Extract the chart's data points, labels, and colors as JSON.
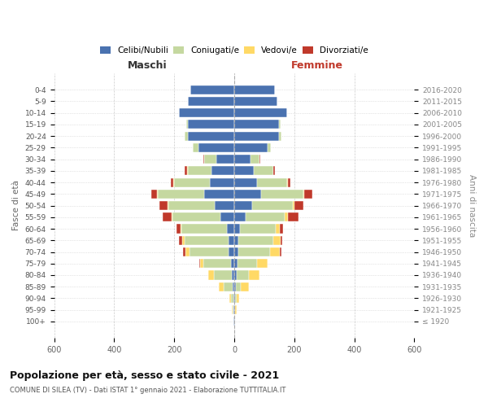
{
  "age_groups": [
    "100+",
    "95-99",
    "90-94",
    "85-89",
    "80-84",
    "75-79",
    "70-74",
    "65-69",
    "60-64",
    "55-59",
    "50-54",
    "45-49",
    "40-44",
    "35-39",
    "30-34",
    "25-29",
    "20-24",
    "15-19",
    "10-14",
    "5-9",
    "0-4"
  ],
  "birth_years": [
    "≤ 1920",
    "1921-1925",
    "1926-1930",
    "1931-1935",
    "1936-1940",
    "1941-1945",
    "1946-1950",
    "1951-1955",
    "1956-1960",
    "1961-1965",
    "1966-1970",
    "1971-1975",
    "1976-1980",
    "1981-1985",
    "1986-1990",
    "1991-1995",
    "1996-2000",
    "2001-2005",
    "2006-2010",
    "2011-2015",
    "2016-2020"
  ],
  "male": {
    "celibi": [
      2,
      2,
      3,
      5,
      8,
      12,
      18,
      20,
      25,
      45,
      65,
      100,
      80,
      75,
      60,
      120,
      155,
      155,
      185,
      155,
      145
    ],
    "coniugati": [
      0,
      3,
      8,
      30,
      60,
      90,
      130,
      145,
      150,
      160,
      155,
      155,
      120,
      80,
      40,
      18,
      10,
      5,
      0,
      0,
      0
    ],
    "vedovi": [
      0,
      2,
      5,
      15,
      18,
      12,
      14,
      8,
      5,
      4,
      3,
      2,
      2,
      1,
      0,
      0,
      0,
      0,
      0,
      0,
      0
    ],
    "divorziati": [
      0,
      0,
      0,
      0,
      0,
      2,
      8,
      10,
      12,
      28,
      25,
      20,
      10,
      8,
      2,
      0,
      0,
      0,
      0,
      0,
      0
    ]
  },
  "female": {
    "nubili": [
      2,
      2,
      3,
      5,
      8,
      10,
      15,
      15,
      18,
      38,
      60,
      90,
      75,
      65,
      55,
      110,
      150,
      150,
      175,
      145,
      135
    ],
    "coniugate": [
      0,
      2,
      5,
      18,
      40,
      65,
      105,
      115,
      120,
      130,
      135,
      140,
      100,
      65,
      30,
      12,
      8,
      4,
      0,
      0,
      0
    ],
    "vedove": [
      0,
      3,
      8,
      25,
      35,
      35,
      32,
      25,
      15,
      10,
      6,
      4,
      3,
      1,
      0,
      0,
      0,
      0,
      0,
      0,
      0
    ],
    "divorziate": [
      0,
      0,
      0,
      1,
      1,
      2,
      5,
      5,
      10,
      35,
      30,
      25,
      10,
      5,
      2,
      0,
      0,
      0,
      0,
      0,
      0
    ]
  },
  "colors": {
    "celibi_nubili": "#4a72b0",
    "coniugati": "#c5d8a0",
    "vedovi": "#ffd966",
    "divorziati": "#c0392b"
  },
  "xlim": 600,
  "title": "Popolazione per età, sesso e stato civile - 2021",
  "subtitle": "COMUNE DI SILEA (TV) - Dati ISTAT 1° gennaio 2021 - Elaborazione TUTTITALIA.IT",
  "label_maschi": "Maschi",
  "label_femmine": "Femmine",
  "ylabel_left": "Fasce di età",
  "ylabel_right": "Anni di nascita",
  "legend": [
    "Celibi/Nubili",
    "Coniugati/e",
    "Vedovi/e",
    "Divorziati/e"
  ],
  "bg_color": "#ffffff"
}
